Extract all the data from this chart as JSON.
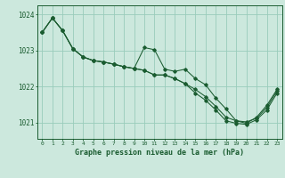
{
  "title": "Graphe pression niveau de la mer (hPa)",
  "bg_color": "#cce8dd",
  "grid_color": "#99ccbb",
  "line_color": "#1a5c30",
  "text_color": "#1a5c30",
  "xlim": [
    -0.5,
    23.5
  ],
  "ylim": [
    1020.55,
    1024.25
  ],
  "yticks": [
    1021,
    1022,
    1023,
    1024
  ],
  "xticks": [
    0,
    1,
    2,
    3,
    4,
    5,
    6,
    7,
    8,
    9,
    10,
    11,
    12,
    13,
    14,
    15,
    16,
    17,
    18,
    19,
    20,
    21,
    22,
    23
  ],
  "line1": [
    1023.5,
    1023.9,
    1023.55,
    1023.05,
    1022.82,
    1022.72,
    1022.68,
    1022.62,
    1022.55,
    1022.5,
    1022.45,
    1022.32,
    1022.32,
    1022.22,
    1022.08,
    1021.92,
    1021.72,
    1021.45,
    1021.15,
    1021.05,
    1021.02,
    1021.12,
    1021.42,
    1021.88
  ],
  "line2": [
    1023.5,
    1023.9,
    1023.55,
    1023.05,
    1022.82,
    1022.72,
    1022.68,
    1022.62,
    1022.55,
    1022.5,
    1022.45,
    1022.32,
    1022.32,
    1022.22,
    1022.08,
    1021.82,
    1021.62,
    1021.35,
    1021.05,
    1020.98,
    1020.95,
    1021.08,
    1021.35,
    1021.82
  ],
  "line3": [
    1023.5,
    1023.9,
    1023.55,
    1023.05,
    1022.82,
    1022.72,
    1022.68,
    1022.62,
    1022.55,
    1022.5,
    1023.08,
    1023.02,
    1022.48,
    1022.42,
    1022.48,
    1022.22,
    1022.05,
    1021.68,
    1021.38,
    1021.05,
    1020.98,
    1021.15,
    1021.48,
    1021.92
  ]
}
